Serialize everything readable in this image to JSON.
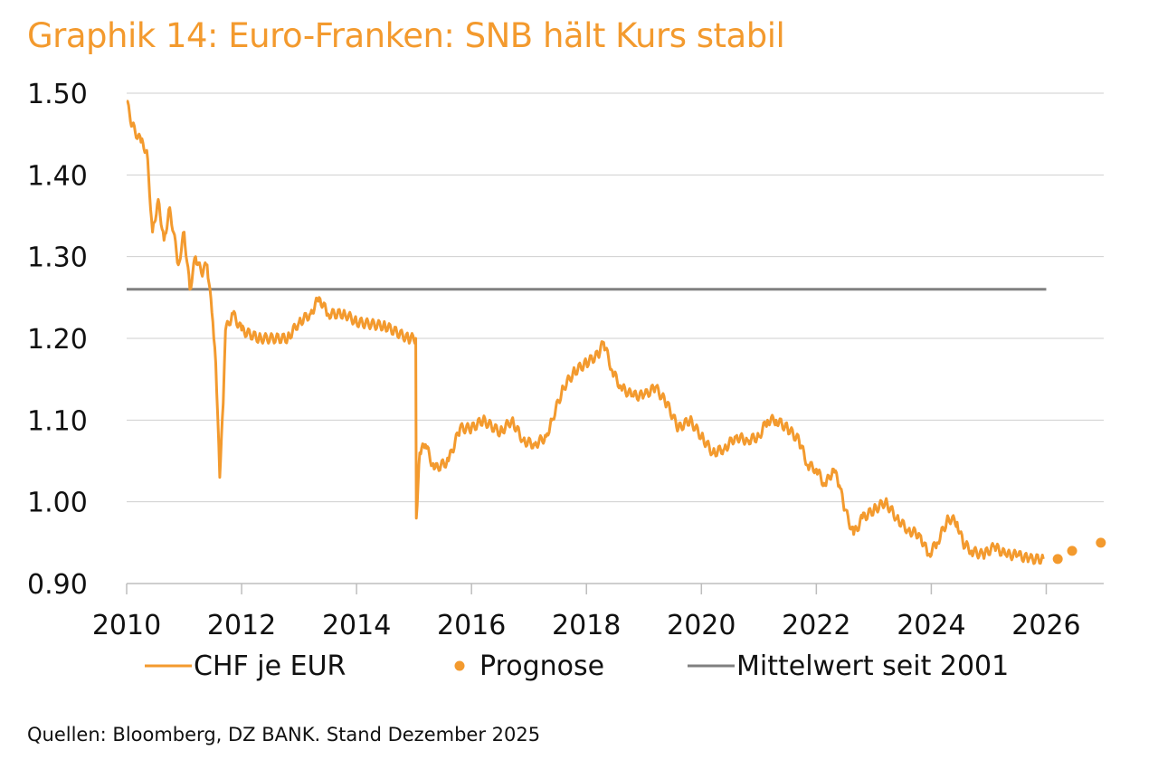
{
  "chart_data": {
    "type": "line",
    "title": "Graphik 14: Euro-Franken: SNB hält Kurs stabil",
    "xlabel": "",
    "ylabel": "",
    "xlim": [
      2010,
      2027
    ],
    "ylim": [
      0.9,
      1.5
    ],
    "x_ticks": [
      "2010",
      "2012",
      "2014",
      "2016",
      "2018",
      "2020",
      "2022",
      "2024",
      "2026"
    ],
    "y_ticks": [
      "0.90",
      "1.00",
      "1.10",
      "1.20",
      "1.30",
      "1.40",
      "1.50"
    ],
    "grid": "horizontal",
    "legend_position": "bottom",
    "colors": {
      "series": "#f39a2e",
      "forecast": "#f39a2e",
      "mean": "#808080"
    },
    "series": [
      {
        "name": "CHF je EUR",
        "type": "line",
        "x": [
          2010.0,
          2010.1,
          2010.25,
          2010.35,
          2010.45,
          2010.55,
          2010.65,
          2010.75,
          2010.9,
          2011.0,
          2011.1,
          2011.2,
          2011.3,
          2011.4,
          2011.5,
          2011.55,
          2011.62,
          2011.68,
          2011.72,
          2011.85,
          2012.0,
          2012.3,
          2012.8,
          2013.0,
          2013.2,
          2013.35,
          2013.5,
          2013.8,
          2014.0,
          2014.5,
          2014.9,
          2015.03,
          2015.04,
          2015.1,
          2015.2,
          2015.35,
          2015.6,
          2015.8,
          2016.0,
          2016.2,
          2016.5,
          2016.7,
          2016.9,
          2017.1,
          2017.3,
          2017.4,
          2017.6,
          2017.8,
          2018.0,
          2018.2,
          2018.3,
          2018.45,
          2018.6,
          2018.8,
          2019.0,
          2019.2,
          2019.4,
          2019.6,
          2019.8,
          2020.0,
          2020.2,
          2020.4,
          2020.6,
          2020.8,
          2021.0,
          2021.15,
          2021.3,
          2021.5,
          2021.7,
          2021.85,
          2022.0,
          2022.15,
          2022.3,
          2022.4,
          2022.5,
          2022.65,
          2022.8,
          2023.0,
          2023.2,
          2023.4,
          2023.6,
          2023.8,
          2023.95,
          2024.1,
          2024.3,
          2024.45,
          2024.55,
          2024.7,
          2024.9,
          2025.1,
          2025.3,
          2025.5,
          2025.7,
          2025.95
        ],
        "values": [
          1.49,
          1.46,
          1.44,
          1.43,
          1.33,
          1.37,
          1.32,
          1.36,
          1.29,
          1.33,
          1.26,
          1.3,
          1.28,
          1.29,
          1.22,
          1.17,
          1.03,
          1.12,
          1.21,
          1.23,
          1.21,
          1.2,
          1.2,
          1.22,
          1.23,
          1.25,
          1.23,
          1.23,
          1.22,
          1.215,
          1.2,
          1.2,
          0.98,
          1.06,
          1.07,
          1.04,
          1.05,
          1.09,
          1.09,
          1.1,
          1.085,
          1.1,
          1.075,
          1.07,
          1.08,
          1.1,
          1.14,
          1.16,
          1.17,
          1.18,
          1.195,
          1.16,
          1.14,
          1.13,
          1.13,
          1.14,
          1.12,
          1.09,
          1.1,
          1.08,
          1.06,
          1.065,
          1.08,
          1.075,
          1.08,
          1.1,
          1.1,
          1.09,
          1.075,
          1.045,
          1.04,
          1.02,
          1.04,
          1.02,
          0.99,
          0.96,
          0.98,
          0.99,
          1.0,
          0.98,
          0.965,
          0.96,
          0.935,
          0.95,
          0.98,
          0.975,
          0.95,
          0.94,
          0.935,
          0.945,
          0.935,
          0.935,
          0.93,
          0.93
        ]
      },
      {
        "name": "Prognose",
        "type": "scatter",
        "x": [
          2026.2,
          2026.45,
          2026.95
        ],
        "values": [
          0.93,
          0.94,
          0.95
        ]
      },
      {
        "name": "Mittelwert seit 2001",
        "type": "line",
        "x": [
          2010.0,
          2026.0
        ],
        "values": [
          1.26,
          1.26
        ]
      }
    ]
  },
  "source": "Quellen: Bloomberg, DZ BANK. Stand Dezember 2025"
}
